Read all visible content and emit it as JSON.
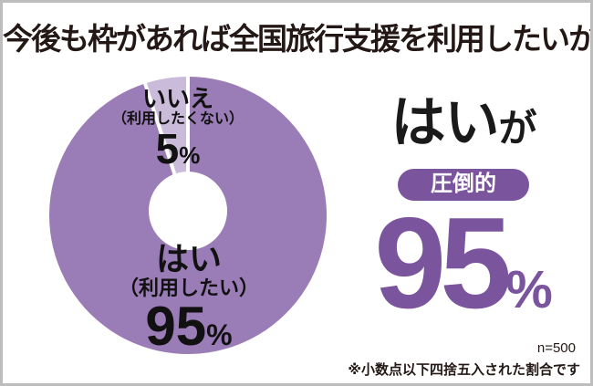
{
  "title": "今後も枠があれば全国旅行支援を利用したいか",
  "chart_data": {
    "type": "pie",
    "donut": true,
    "title": "今後も枠があれば全国旅行支援を利用したいか",
    "start_angle_deg": 0,
    "direction": "clockwise",
    "slices": [
      {
        "key": "yes",
        "label": "はい",
        "sublabel": "（利用したい）",
        "value": 95,
        "unit": "%",
        "color": "#9a7cb6"
      },
      {
        "key": "no",
        "label": "いいえ",
        "sublabel": "（利用したくない）",
        "value": 5,
        "unit": "%",
        "color": "#c9bbd9"
      }
    ],
    "sample_size": "n=500",
    "note": "※小数点以下四捨五入された割合です"
  },
  "highlight": {
    "word": "はい",
    "particle": "が",
    "badge": "圧倒的",
    "value": "95",
    "unit": "%"
  },
  "colors": {
    "accent": "#7b549e",
    "slice_yes": "#9a7cb6",
    "slice_no": "#c9bbd9",
    "text_black": "#231815",
    "card_border": "#bdbdbd",
    "gap_line": "#ffffff"
  },
  "geometry": {
    "outer_radius": 152,
    "inner_radius": 43,
    "gap_width": 4
  }
}
